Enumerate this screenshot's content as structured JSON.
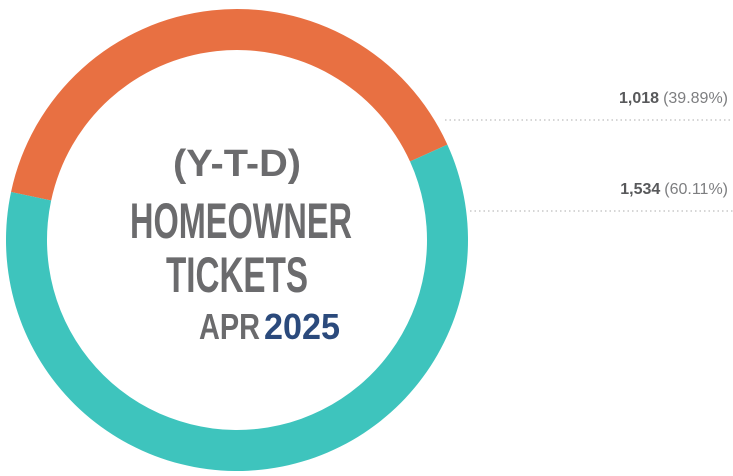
{
  "chart_data": {
    "type": "donut",
    "values": [
      1018,
      1534
    ],
    "value_labels": [
      "1,018",
      "1,534"
    ],
    "percents": [
      39.89,
      60.11
    ],
    "percent_labels": [
      "(39.89%)",
      "(60.11%)"
    ],
    "colors": [
      "#e87042",
      "#3ec4bd"
    ],
    "title_lines": [
      "(Y-T-D)",
      "HOMEOWNER",
      "TICKETS"
    ],
    "month": "APR",
    "year": "2025"
  }
}
